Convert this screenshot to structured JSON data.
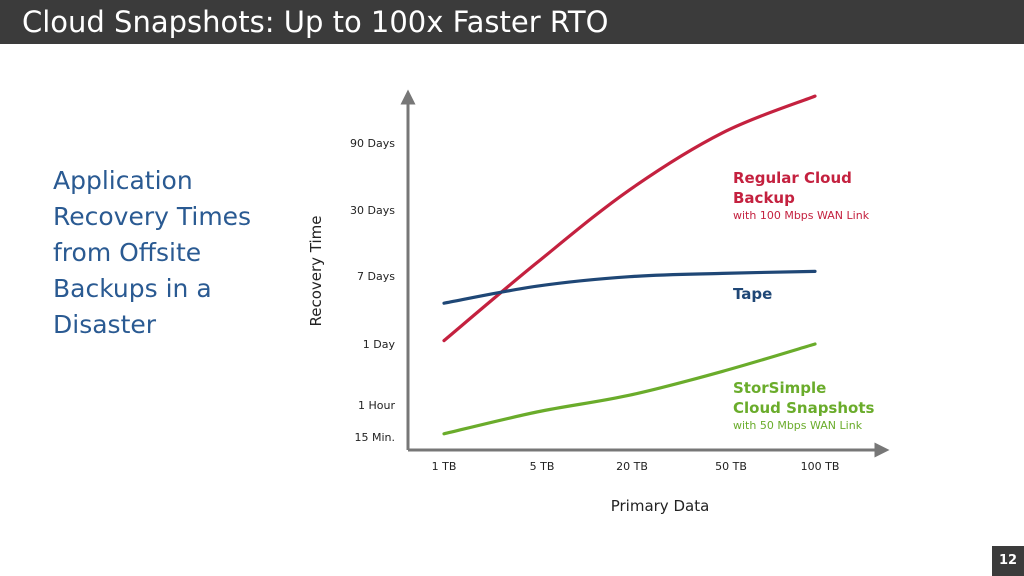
{
  "slide": {
    "title": "Cloud Snapshots: Up to 100x Faster RTO",
    "side_heading": [
      "Application",
      "Recovery Times",
      "from Offsite",
      "Backups in a",
      "Disaster"
    ],
    "page_number": "12"
  },
  "chart_data": {
    "type": "line",
    "xlabel": "Primary Data",
    "ylabel": "Recovery Time",
    "x_categories": [
      "1 TB",
      "5 TB",
      "20 TB",
      "50 TB",
      "100 TB"
    ],
    "y_categories": [
      "15 Min.",
      "1 Hour",
      "1 Day",
      "7 Days",
      "30 Days",
      "90 Days"
    ],
    "grid": false,
    "series": [
      {
        "name": "Regular Cloud Backup",
        "name_lines": [
          "Regular Cloud",
          "Backup"
        ],
        "note": "with 100 Mbps WAN Link",
        "color": "#c4213f",
        "x": [
          0,
          1,
          2,
          3,
          4
        ],
        "y": [
          2.05,
          3.2,
          4.3,
          5.15,
          5.7
        ]
      },
      {
        "name": "Tape",
        "name_lines": [
          "Tape"
        ],
        "note": "",
        "color": "#1f4776",
        "x": [
          0,
          1,
          2,
          3,
          4
        ],
        "y": [
          2.6,
          2.85,
          2.99,
          3.04,
          3.07
        ]
      },
      {
        "name": "StorSimple Cloud Snapshots",
        "name_lines": [
          "StorSimple",
          "Cloud Snapshots"
        ],
        "note": "with 50 Mbps WAN Link",
        "color": "#6aac2b",
        "x": [
          0,
          1,
          2,
          3,
          4
        ],
        "y": [
          0.1,
          0.78,
          1.16,
          1.55,
          2.0
        ]
      }
    ]
  }
}
